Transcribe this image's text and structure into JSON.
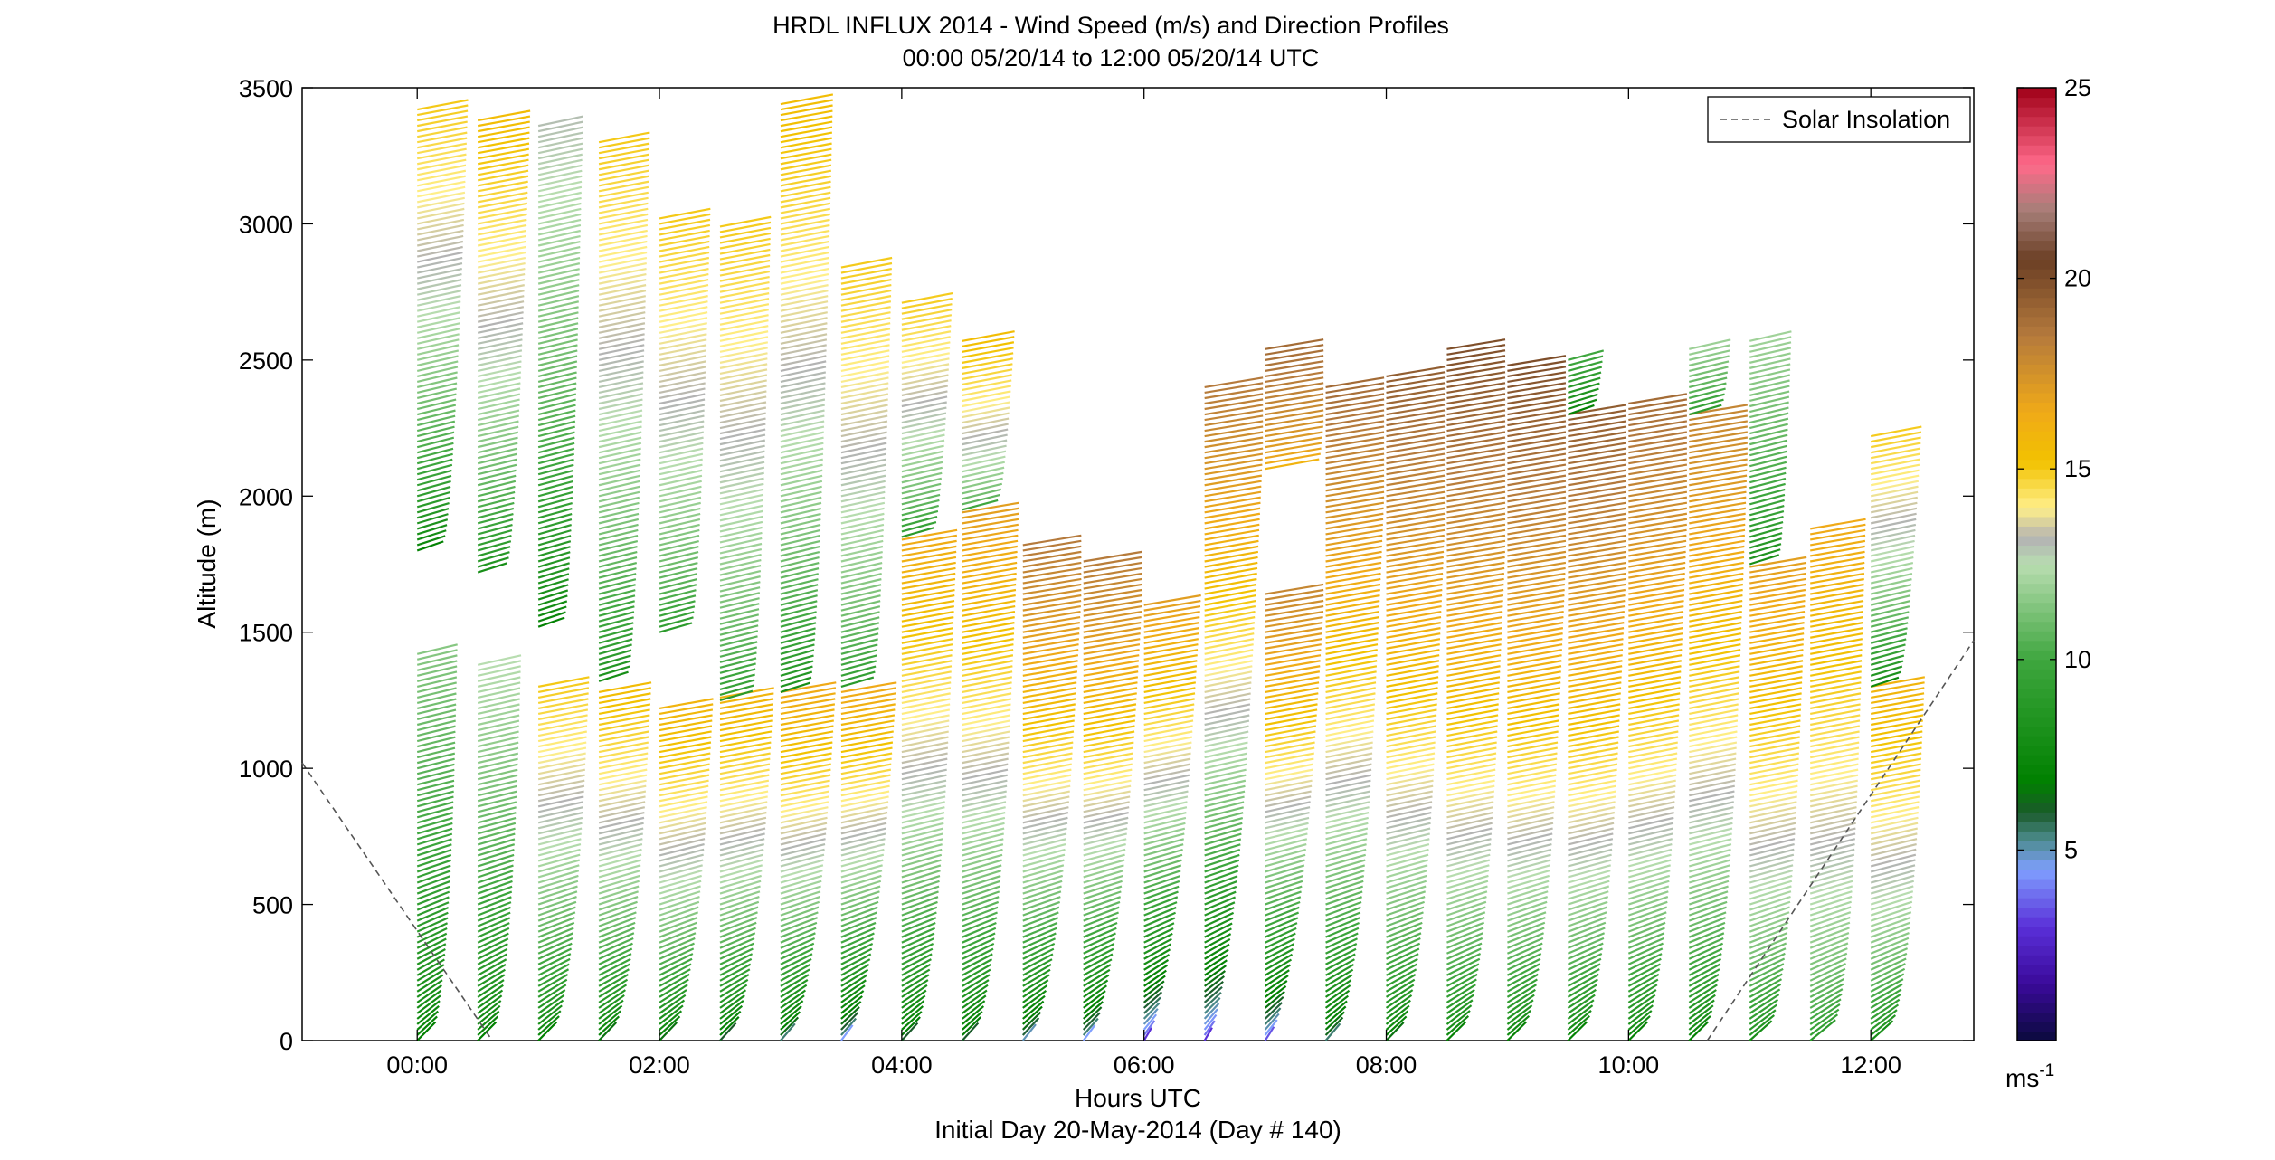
{
  "chart_data": {
    "type": "wind-barb-profile",
    "title": "HRDL INFLUX 2014 - Wind Speed (m/s) and Direction Profiles",
    "subtitle": "00:00 05/20/14 to 12:00 05/20/14  UTC",
    "xlabel": "Hours UTC",
    "xlabel2": "Initial Day 20-May-2014 (Day # 140)",
    "ylabel": "Altitude (m)",
    "xlim_hours": [
      -0.95,
      12.85
    ],
    "ylim": [
      0,
      3500
    ],
    "x_ticks": [
      {
        "value": 0,
        "label": "00:00"
      },
      {
        "value": 2,
        "label": "02:00"
      },
      {
        "value": 4,
        "label": "04:00"
      },
      {
        "value": 6,
        "label": "06:00"
      },
      {
        "value": 8,
        "label": "08:00"
      },
      {
        "value": 10,
        "label": "10:00"
      },
      {
        "value": 12,
        "label": "12:00"
      }
    ],
    "y_ticks": [
      0,
      500,
      1000,
      1500,
      2000,
      2500,
      3000,
      3500
    ],
    "legend": {
      "position": "top-right",
      "entries": [
        {
          "label": "Solar Insolation",
          "style": "dashed",
          "color": "#555555"
        }
      ]
    },
    "colorbar": {
      "unit_base": "ms",
      "unit_exp": "-1",
      "range": [
        0,
        25
      ],
      "ticks": [
        5,
        10,
        15,
        20,
        25
      ],
      "stops": [
        {
          "v": 0,
          "c": "#0a0a3c"
        },
        {
          "v": 1.5,
          "c": "#3a0a9a"
        },
        {
          "v": 3,
          "c": "#5a2fd8"
        },
        {
          "v": 4.5,
          "c": "#7f9fff"
        },
        {
          "v": 5.3,
          "c": "#4b8a8a"
        },
        {
          "v": 6,
          "c": "#1a5a2a"
        },
        {
          "v": 6.8,
          "c": "#008000"
        },
        {
          "v": 10,
          "c": "#3ea63e"
        },
        {
          "v": 12.5,
          "c": "#b8ddb0"
        },
        {
          "v": 13.2,
          "c": "#b3b3b3"
        },
        {
          "v": 14,
          "c": "#ffef8a"
        },
        {
          "v": 15.2,
          "c": "#f2c200"
        },
        {
          "v": 16.5,
          "c": "#f0aa18"
        },
        {
          "v": 18.5,
          "c": "#b57a3c"
        },
        {
          "v": 20.5,
          "c": "#6b3f24"
        },
        {
          "v": 21.8,
          "c": "#a67e78"
        },
        {
          "v": 23,
          "c": "#ff6a8a"
        },
        {
          "v": 25,
          "c": "#a00018"
        }
      ]
    },
    "solar_insolation": {
      "color": "#555555",
      "segments": [
        {
          "x": [
            -0.95,
            0.62
          ],
          "y": [
            1020,
            0
          ]
        },
        {
          "x": [
            10.65,
            12.85
          ],
          "y": [
            0,
            1470
          ]
        }
      ]
    },
    "profiles": [
      {
        "t": 0.0,
        "layers": [
          {
            "z0": 0,
            "z1": 1420,
            "lo": 6.8,
            "hi": 11.5
          },
          {
            "z0": 1800,
            "z1": 3420,
            "lo": 7,
            "hi": 15
          }
        ]
      },
      {
        "t": 0.5,
        "layers": [
          {
            "z0": 0,
            "z1": 1380,
            "lo": 6.8,
            "hi": 12.5
          },
          {
            "z0": 1720,
            "z1": 3380,
            "lo": 8,
            "hi": 15.5
          }
        ]
      },
      {
        "t": 1.0,
        "layers": [
          {
            "z0": 0,
            "z1": 1300,
            "lo": 6.8,
            "hi": 15
          },
          {
            "z0": 1520,
            "z1": 3360,
            "lo": 7,
            "hi": 13
          }
        ]
      },
      {
        "t": 1.5,
        "layers": [
          {
            "z0": 0,
            "z1": 1280,
            "lo": 6.5,
            "hi": 15.5
          },
          {
            "z0": 1320,
            "z1": 3300,
            "lo": 8,
            "hi": 15
          }
        ]
      },
      {
        "t": 2.0,
        "layers": [
          {
            "z0": 0,
            "z1": 1230,
            "lo": 6.5,
            "hi": 16
          },
          {
            "z0": 1500,
            "z1": 3020,
            "lo": 9,
            "hi": 15
          }
        ]
      },
      {
        "t": 2.5,
        "layers": [
          {
            "z0": 0,
            "z1": 1260,
            "lo": 6,
            "hi": 16
          },
          {
            "z0": 1250,
            "z1": 3000,
            "lo": 9,
            "hi": 15
          }
        ]
      },
      {
        "t": 3.0,
        "layers": [
          {
            "z0": 0,
            "z1": 1280,
            "lo": 5.5,
            "hi": 16.5
          },
          {
            "z0": 1280,
            "z1": 3450,
            "lo": 8,
            "hi": 15.5
          }
        ]
      },
      {
        "t": 3.5,
        "layers": [
          {
            "z0": 0,
            "z1": 1280,
            "lo": 4.5,
            "hi": 16.5
          },
          {
            "z0": 1300,
            "z1": 2850,
            "lo": 9,
            "hi": 15
          }
        ]
      },
      {
        "t": 4.0,
        "layers": [
          {
            "z0": 0,
            "z1": 1850,
            "lo": 6,
            "hi": 16.5
          },
          {
            "z0": 1850,
            "z1": 2720,
            "lo": 9,
            "hi": 15
          }
        ]
      },
      {
        "t": 4.5,
        "layers": [
          {
            "z0": 0,
            "z1": 1950,
            "lo": 6,
            "hi": 17
          },
          {
            "z0": 1950,
            "z1": 2580,
            "lo": 10,
            "hi": 15.5
          }
        ]
      },
      {
        "t": 5.0,
        "layers": [
          {
            "z0": 0,
            "z1": 1820,
            "lo": 5,
            "hi": 18.5
          }
        ]
      },
      {
        "t": 5.5,
        "layers": [
          {
            "z0": 0,
            "z1": 1770,
            "lo": 4.5,
            "hi": 18.5
          }
        ]
      },
      {
        "t": 6.0,
        "layers": [
          {
            "z0": 0,
            "z1": 1600,
            "lo": 3,
            "hi": 17
          }
        ]
      },
      {
        "t": 6.5,
        "layers": [
          {
            "z0": 0,
            "z1": 2400,
            "lo": 3,
            "hi": 18.5
          }
        ]
      },
      {
        "t": 7.0,
        "layers": [
          {
            "z0": 0,
            "z1": 1650,
            "lo": 3.5,
            "hi": 18
          },
          {
            "z0": 2100,
            "z1": 2550,
            "lo": 16,
            "hi": 19
          }
        ]
      },
      {
        "t": 7.5,
        "layers": [
          {
            "z0": 0,
            "z1": 2400,
            "lo": 5.5,
            "hi": 19
          }
        ]
      },
      {
        "t": 8.0,
        "layers": [
          {
            "z0": 0,
            "z1": 2450,
            "lo": 6.5,
            "hi": 19.5
          }
        ]
      },
      {
        "t": 8.5,
        "layers": [
          {
            "z0": 0,
            "z1": 2550,
            "lo": 7,
            "hi": 20
          }
        ]
      },
      {
        "t": 9.0,
        "layers": [
          {
            "z0": 0,
            "z1": 2480,
            "lo": 7,
            "hi": 20
          }
        ]
      },
      {
        "t": 9.5,
        "layers": [
          {
            "z0": 0,
            "z1": 2300,
            "lo": 7,
            "hi": 19.5
          },
          {
            "z0": 2300,
            "z1": 2500,
            "lo": 7,
            "hi": 10
          }
        ]
      },
      {
        "t": 10.0,
        "layers": [
          {
            "z0": 0,
            "z1": 2350,
            "lo": 7,
            "hi": 19
          }
        ]
      },
      {
        "t": 10.5,
        "layers": [
          {
            "z0": 0,
            "z1": 2300,
            "lo": 7,
            "hi": 18
          },
          {
            "z0": 2300,
            "z1": 2550,
            "lo": 9,
            "hi": 12
          }
        ]
      },
      {
        "t": 11.0,
        "layers": [
          {
            "z0": 0,
            "z1": 1750,
            "lo": 8,
            "hi": 17
          },
          {
            "z0": 1750,
            "z1": 2570,
            "lo": 8,
            "hi": 12
          }
        ]
      },
      {
        "t": 11.5,
        "layers": [
          {
            "z0": 0,
            "z1": 1880,
            "lo": 9,
            "hi": 16.5
          }
        ]
      },
      {
        "t": 12.0,
        "layers": [
          {
            "z0": 0,
            "z1": 1300,
            "lo": 8,
            "hi": 16
          },
          {
            "z0": 1300,
            "z1": 2230,
            "lo": 7.5,
            "hi": 15
          }
        ]
      }
    ]
  }
}
